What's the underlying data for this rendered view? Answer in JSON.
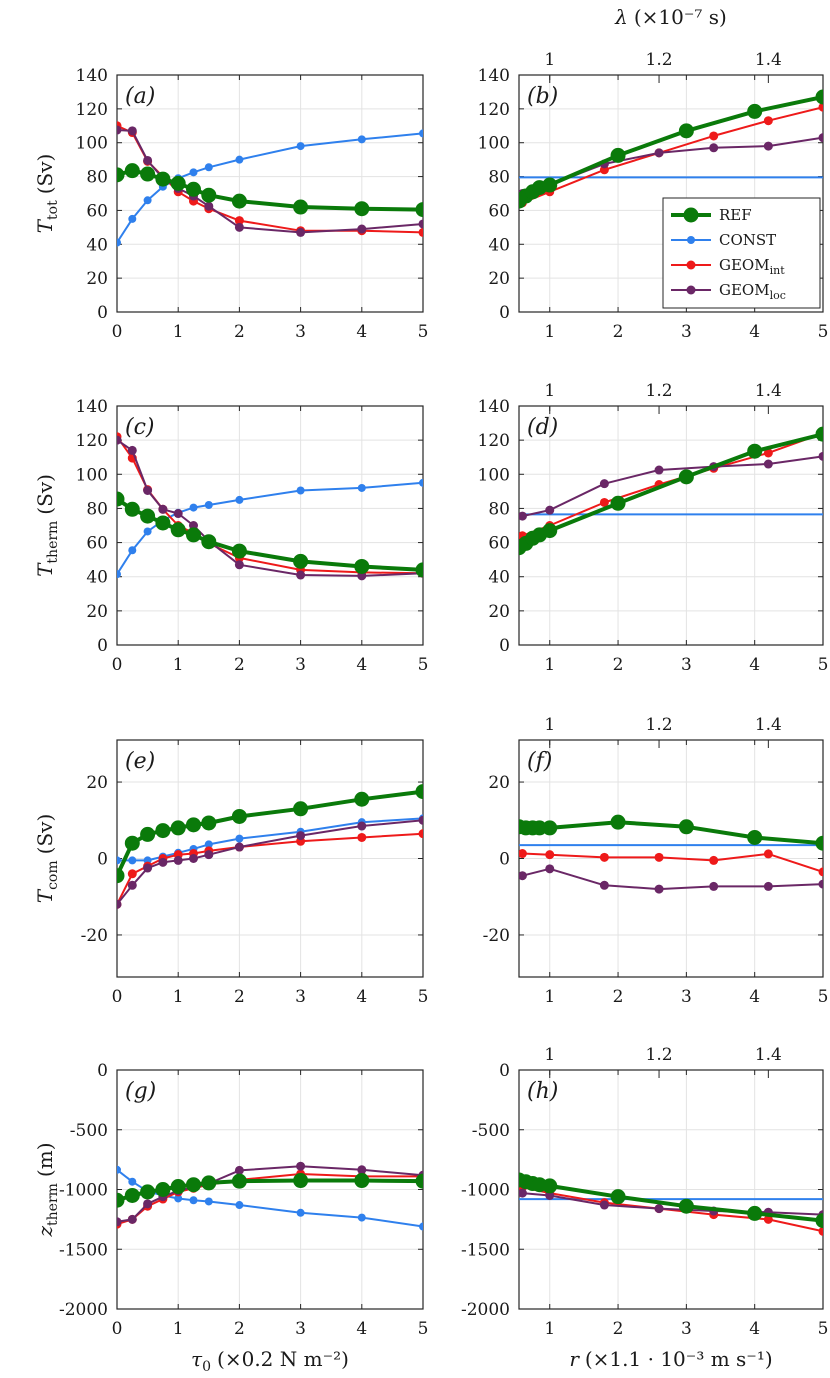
{
  "chart_data": [
    {
      "id": "a",
      "type": "line",
      "panel_label": "(a)",
      "xscale": "tau",
      "xticks": [
        0,
        1,
        2,
        3,
        4,
        5
      ],
      "xlim": [
        0,
        5
      ],
      "ylim": [
        0,
        140
      ],
      "yticks": [
        0,
        20,
        40,
        60,
        80,
        100,
        120,
        140
      ],
      "ytick_labels": [
        "0",
        "20",
        "40",
        "60",
        "80",
        "100",
        "120",
        "140"
      ],
      "ylabel_main": "T",
      "ylabel_sub": "tot",
      "ylabel_unit": "(Sv)",
      "series": [
        {
          "name": "REF",
          "x": [
            0,
            0.25,
            0.5,
            0.75,
            1,
            1.25,
            1.5,
            2,
            3,
            4,
            5
          ],
          "y": [
            81,
            83.5,
            81.5,
            78.5,
            76,
            72.5,
            69,
            65.5,
            62,
            61,
            60.5
          ]
        },
        {
          "name": "CONST",
          "x": [
            0,
            0.25,
            0.5,
            0.75,
            1,
            1.25,
            1.5,
            2,
            3,
            4,
            5
          ],
          "y": [
            41,
            55,
            66,
            74,
            79,
            82.5,
            85.5,
            90,
            98,
            102,
            105.5
          ]
        },
        {
          "name": "GEOM_int",
          "x": [
            0,
            0.25,
            0.5,
            0.75,
            1,
            1.25,
            1.5,
            2,
            3,
            4,
            5
          ],
          "y": [
            110,
            106,
            89,
            80,
            71,
            65.5,
            61,
            54,
            48,
            48,
            47
          ]
        },
        {
          "name": "GEOM_loc",
          "x": [
            0,
            0.25,
            0.5,
            0.75,
            1,
            1.25,
            1.5,
            2,
            3,
            4,
            5
          ],
          "y": [
            107.5,
            107,
            89.5,
            79,
            73,
            68.5,
            62.5,
            50,
            47,
            49,
            52
          ]
        }
      ]
    },
    {
      "id": "b",
      "type": "line",
      "panel_label": "(b)",
      "xscale": "r",
      "xticks": [
        1,
        2,
        3,
        4,
        5
      ],
      "xlim": [
        0.55,
        5
      ],
      "top_ticks": [
        {
          "x": 1,
          "label": "1"
        },
        {
          "x": 2.6,
          "label": "1.2"
        },
        {
          "x": 4.2,
          "label": "1.4"
        }
      ],
      "ylim": [
        0,
        140
      ],
      "yticks": [
        0,
        20,
        40,
        60,
        80,
        100,
        120,
        140
      ],
      "ytick_labels": [
        "0",
        "20",
        "40",
        "60",
        "80",
        "100",
        "120",
        "140"
      ],
      "series": [
        {
          "name": "REF",
          "x": [
            0.55,
            0.65,
            0.75,
            0.85,
            1,
            2,
            3,
            4,
            5
          ],
          "y": [
            65.5,
            68.5,
            71,
            73.5,
            75,
            92.5,
            107,
            118.5,
            127
          ]
        },
        {
          "name": "CONST",
          "x": [
            0.55,
            5
          ],
          "y": [
            79.5,
            79.5
          ]
        },
        {
          "name": "GEOM_int",
          "x": [
            0.6,
            1,
            1.8,
            2.6,
            3.4,
            4.2,
            5
          ],
          "y": [
            64.5,
            71,
            84,
            94,
            104,
            113,
            121
          ]
        },
        {
          "name": "GEOM_loc",
          "x": [
            0.6,
            1,
            1.8,
            2.6,
            3.4,
            4.2,
            5
          ],
          "y": [
            70,
            75,
            87.5,
            94,
            97,
            98,
            103
          ]
        }
      ]
    },
    {
      "id": "c",
      "type": "line",
      "panel_label": "(c)",
      "xscale": "tau",
      "xticks": [
        0,
        1,
        2,
        3,
        4,
        5
      ],
      "xlim": [
        0,
        5
      ],
      "ylim": [
        0,
        140
      ],
      "yticks": [
        0,
        20,
        40,
        60,
        80,
        100,
        120,
        140
      ],
      "ytick_labels": [
        "0",
        "20",
        "40",
        "60",
        "80",
        "100",
        "120",
        "140"
      ],
      "ylabel_main": "T",
      "ylabel_sub": "therm",
      "ylabel_unit": "(Sv)",
      "series": [
        {
          "name": "REF",
          "x": [
            0,
            0.25,
            0.5,
            0.75,
            1,
            1.25,
            1.5,
            2,
            3,
            4,
            5
          ],
          "y": [
            85.5,
            79.5,
            75.5,
            71.5,
            67.5,
            64.5,
            60.5,
            55,
            49,
            46,
            44
          ]
        },
        {
          "name": "CONST",
          "x": [
            0,
            0.25,
            0.5,
            0.75,
            1,
            1.25,
            1.5,
            2,
            3,
            4,
            5
          ],
          "y": [
            41.5,
            55.5,
            66.5,
            73,
            77.5,
            80.5,
            82,
            85,
            90.5,
            92,
            95
          ]
        },
        {
          "name": "GEOM_int",
          "x": [
            0,
            0.25,
            0.5,
            0.75,
            1,
            1.25,
            1.5,
            2,
            3,
            4,
            5
          ],
          "y": [
            122,
            109.5,
            91,
            79.5,
            70,
            65.5,
            59.5,
            51,
            44,
            42.5,
            42
          ]
        },
        {
          "name": "GEOM_loc",
          "x": [
            0,
            0.25,
            0.5,
            0.75,
            1,
            1.25,
            1.5,
            2,
            3,
            4,
            5
          ],
          "y": [
            120,
            114,
            90.5,
            79.5,
            77,
            70,
            61,
            47,
            41,
            40.5,
            42
          ]
        }
      ]
    },
    {
      "id": "d",
      "type": "line",
      "panel_label": "(d)",
      "xscale": "r",
      "xticks": [
        1,
        2,
        3,
        4,
        5
      ],
      "xlim": [
        0.55,
        5
      ],
      "top_ticks": [
        {
          "x": 1,
          "label": "1"
        },
        {
          "x": 2.6,
          "label": "1.2"
        },
        {
          "x": 4.2,
          "label": "1.4"
        }
      ],
      "ylim": [
        0,
        140
      ],
      "yticks": [
        0,
        20,
        40,
        60,
        80,
        100,
        120,
        140
      ],
      "ytick_labels": [
        "0",
        "20",
        "40",
        "60",
        "80",
        "100",
        "120",
        "140"
      ],
      "series": [
        {
          "name": "REF",
          "x": [
            0.55,
            0.65,
            0.75,
            0.85,
            1,
            2,
            3,
            4,
            5
          ],
          "y": [
            57,
            59.5,
            62.5,
            64.5,
            67,
            83,
            98.5,
            113.5,
            123.5
          ]
        },
        {
          "name": "CONST",
          "x": [
            0.55,
            5
          ],
          "y": [
            76.5,
            76.5
          ]
        },
        {
          "name": "GEOM_int",
          "x": [
            0.6,
            1,
            1.8,
            2.6,
            3.4,
            4.2,
            5
          ],
          "y": [
            64,
            70,
            83.5,
            94,
            103.5,
            112.5,
            124
          ]
        },
        {
          "name": "GEOM_loc",
          "x": [
            0.6,
            1,
            1.8,
            2.6,
            3.4,
            4.2,
            5
          ],
          "y": [
            75.5,
            79,
            94.5,
            102.5,
            104.5,
            106,
            110.5
          ]
        }
      ]
    },
    {
      "id": "e",
      "type": "line",
      "panel_label": "(e)",
      "xscale": "tau",
      "xticks": [
        0,
        1,
        2,
        3,
        4,
        5
      ],
      "xlim": [
        0,
        5
      ],
      "ylim": [
        -31,
        31
      ],
      "yticks": [
        -20,
        0,
        20
      ],
      "ytick_labels": [
        "-20",
        "0",
        "20"
      ],
      "ylabel_main": "T",
      "ylabel_sub": "com",
      "ylabel_unit": "(Sv)",
      "series": [
        {
          "name": "REF",
          "x": [
            0,
            0.25,
            0.5,
            0.75,
            1,
            1.25,
            1.5,
            2,
            3,
            4,
            5
          ],
          "y": [
            -4.5,
            4,
            6.3,
            7.3,
            8,
            8.8,
            9.3,
            11,
            13,
            15.5,
            17.5
          ]
        },
        {
          "name": "CONST",
          "x": [
            0,
            0.25,
            0.5,
            0.75,
            1,
            1.25,
            1.5,
            2,
            3,
            4,
            5
          ],
          "y": [
            -0.5,
            -0.5,
            -0.5,
            0.5,
            1.5,
            2.5,
            3.7,
            5.2,
            7,
            9.5,
            10.5
          ]
        },
        {
          "name": "GEOM_int",
          "x": [
            0,
            0.25,
            0.5,
            0.75,
            1,
            1.25,
            1.5,
            2,
            3,
            4,
            5
          ],
          "y": [
            -12,
            -4,
            -2,
            0,
            1,
            1.3,
            2,
            3,
            4.5,
            5.5,
            6.5
          ]
        },
        {
          "name": "GEOM_loc",
          "x": [
            0,
            0.25,
            0.5,
            0.75,
            1,
            1.25,
            1.5,
            2,
            3,
            4,
            5
          ],
          "y": [
            -12,
            -7,
            -2.5,
            -1,
            -0.5,
            0,
            1,
            3,
            6,
            8.5,
            10
          ]
        }
      ]
    },
    {
      "id": "f",
      "type": "line",
      "panel_label": "(f)",
      "xscale": "r",
      "xticks": [
        1,
        2,
        3,
        4,
        5
      ],
      "xlim": [
        0.55,
        5
      ],
      "top_ticks": [
        {
          "x": 1,
          "label": "1"
        },
        {
          "x": 2.6,
          "label": "1.2"
        },
        {
          "x": 4.2,
          "label": "1.4"
        }
      ],
      "ylim": [
        -31,
        31
      ],
      "yticks": [
        -20,
        0,
        20
      ],
      "ytick_labels": [
        "-20",
        "0",
        "20"
      ],
      "series": [
        {
          "name": "REF",
          "x": [
            0.55,
            0.65,
            0.75,
            0.85,
            1,
            2,
            3,
            4,
            5
          ],
          "y": [
            8.3,
            8,
            8,
            8,
            8,
            9.5,
            8.3,
            5.5,
            4
          ]
        },
        {
          "name": "CONST",
          "x": [
            0.55,
            5
          ],
          "y": [
            3.5,
            3.5
          ]
        },
        {
          "name": "GEOM_int",
          "x": [
            0.6,
            1,
            1.8,
            2.6,
            3.4,
            4.2,
            5
          ],
          "y": [
            1.3,
            1,
            0.3,
            0.3,
            -0.5,
            1.2,
            -3.5
          ]
        },
        {
          "name": "GEOM_loc",
          "x": [
            0.6,
            1,
            1.8,
            2.6,
            3.4,
            4.2,
            5
          ],
          "y": [
            -4.5,
            -2.7,
            -7,
            -8,
            -7.3,
            -7.3,
            -6.7
          ]
        }
      ]
    },
    {
      "id": "g",
      "type": "line",
      "panel_label": "(g)",
      "xscale": "tau",
      "xticks": [
        0,
        1,
        2,
        3,
        4,
        5
      ],
      "xlim": [
        0,
        5
      ],
      "ylim": [
        -2000,
        0
      ],
      "yticks": [
        -2000,
        -1500,
        -1000,
        -500,
        0
      ],
      "ytick_labels": [
        "-2000",
        "-1500",
        "-1000",
        "-500",
        "0"
      ],
      "ylabel_main": "z",
      "ylabel_sub": "therm",
      "ylabel_unit": "(m)",
      "xlabel_main": "τ",
      "xlabel_sub": "0",
      "xlabel_unit": "(×0.2 N m⁻²)",
      "series": [
        {
          "name": "REF",
          "x": [
            0,
            0.25,
            0.5,
            0.75,
            1,
            1.25,
            1.5,
            2,
            3,
            4,
            5
          ],
          "y": [
            -1090,
            -1050,
            -1020,
            -1000,
            -975,
            -960,
            -945,
            -930,
            -925,
            -925,
            -930
          ]
        },
        {
          "name": "CONST",
          "x": [
            0,
            0.25,
            0.5,
            0.75,
            1,
            1.25,
            1.5,
            2,
            3,
            4,
            5
          ],
          "y": [
            -835,
            -935,
            -1015,
            -1050,
            -1075,
            -1090,
            -1100,
            -1130,
            -1195,
            -1235,
            -1310
          ]
        },
        {
          "name": "GEOM_int",
          "x": [
            0,
            0.25,
            0.5,
            0.75,
            1,
            1.25,
            1.5,
            2,
            3,
            4,
            5
          ],
          "y": [
            -1290,
            -1250,
            -1140,
            -1080,
            -1020,
            -990,
            -960,
            -920,
            -870,
            -890,
            -890
          ]
        },
        {
          "name": "GEOM_loc",
          "x": [
            0,
            0.25,
            0.5,
            0.75,
            1,
            1.25,
            1.5,
            2,
            3,
            4,
            5
          ],
          "y": [
            -1270,
            -1250,
            -1120,
            -1060,
            -1010,
            -980,
            -950,
            -840,
            -805,
            -835,
            -880
          ]
        }
      ]
    },
    {
      "id": "h",
      "type": "line",
      "panel_label": "(h)",
      "xscale": "r",
      "xticks": [
        1,
        2,
        3,
        4,
        5
      ],
      "xlim": [
        0.55,
        5
      ],
      "top_ticks": [
        {
          "x": 1,
          "label": "1"
        },
        {
          "x": 2.6,
          "label": "1.2"
        },
        {
          "x": 4.2,
          "label": "1.4"
        }
      ],
      "ylim": [
        -2000,
        0
      ],
      "yticks": [
        -2000,
        -1500,
        -1000,
        -500,
        0
      ],
      "ytick_labels": [
        "-2000",
        "-1500",
        "-1000",
        "-500",
        "0"
      ],
      "xlabel_main": "r",
      "xlabel_unit": "(×1.1 · 10⁻³ m s⁻¹)",
      "series": [
        {
          "name": "REF",
          "x": [
            0.55,
            0.65,
            0.75,
            0.85,
            1,
            2,
            3,
            4,
            5
          ],
          "y": [
            -920,
            -935,
            -950,
            -960,
            -970,
            -1060,
            -1140,
            -1200,
            -1260
          ]
        },
        {
          "name": "CONST",
          "x": [
            0.55,
            5
          ],
          "y": [
            -1080,
            -1080
          ]
        },
        {
          "name": "GEOM_int",
          "x": [
            0.6,
            1,
            1.8,
            2.6,
            3.4,
            4.2,
            5
          ],
          "y": [
            -980,
            -1030,
            -1110,
            -1160,
            -1210,
            -1250,
            -1350
          ]
        },
        {
          "name": "GEOM_loc",
          "x": [
            0.6,
            1,
            1.8,
            2.6,
            3.4,
            4.2,
            5
          ],
          "y": [
            -1030,
            -1050,
            -1130,
            -1160,
            -1180,
            -1190,
            -1210
          ]
        }
      ]
    }
  ],
  "legend": {
    "placement": "inside panel (b), lower-right",
    "entries": [
      {
        "name": "REF",
        "label": "REF",
        "color": "#0a7a0a"
      },
      {
        "name": "CONST",
        "label": "CONST",
        "color": "#2f80ed"
      },
      {
        "name": "GEOM_int",
        "label": "GEOM",
        "sub": "int",
        "color": "#ee1a1a"
      },
      {
        "name": "GEOM_loc",
        "label": "GEOM",
        "sub": "loc",
        "color": "#6a2766"
      }
    ]
  },
  "top_axis_label": {
    "main": "λ",
    "unit": "(×10⁻⁷ s)"
  },
  "colors": {
    "REF": "#0a7a0a",
    "CONST": "#2f80ed",
    "GEOM_int": "#ee1a1a",
    "GEOM_loc": "#6a2766",
    "grid": "#e3e3e3",
    "axis": "#262626"
  }
}
